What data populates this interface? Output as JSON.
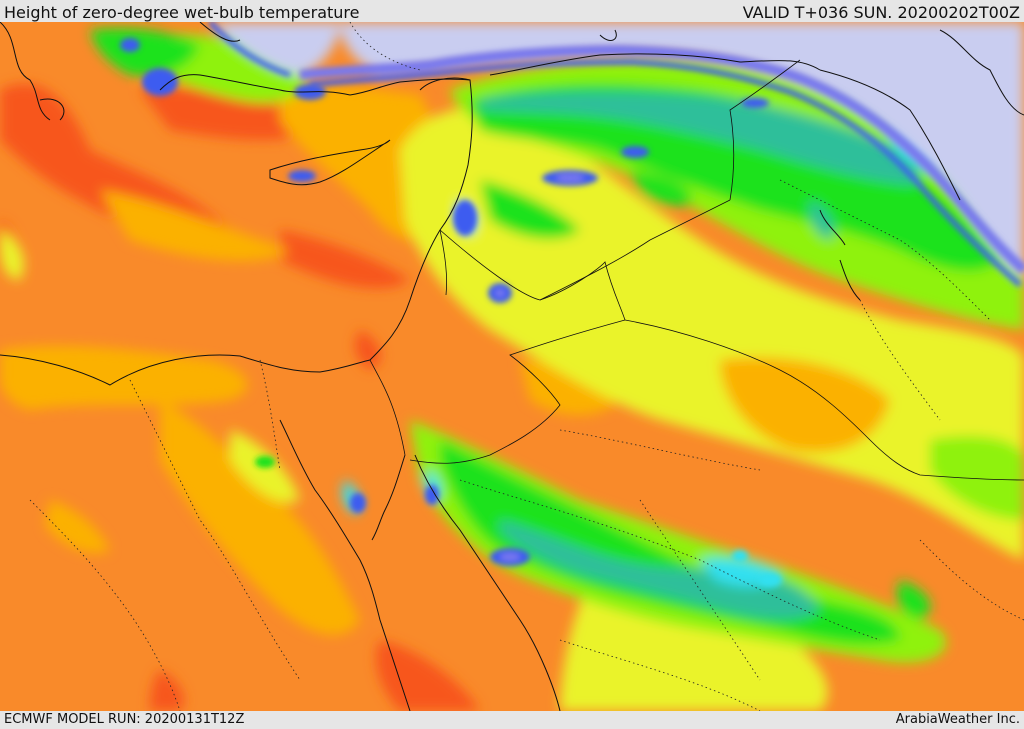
{
  "header": {
    "title": "Height of zero-degree wet-bulb temperature",
    "valid": "VALID T+036 SUN. 20200202T00Z"
  },
  "footer": {
    "model_run": "ECMWF MODEL RUN: 20200131T12Z",
    "credit": "ArabiaWeather Inc."
  },
  "map": {
    "field": "zero-degree wet-bulb height",
    "palette": [
      "#c9cdf0",
      "#7878ee",
      "#3c5bf0",
      "#30e0f0",
      "#2fbf9a",
      "#1fe21f",
      "#8ff210",
      "#eaf32a",
      "#fbb106",
      "#f98a2a",
      "#f7561c"
    ]
  }
}
